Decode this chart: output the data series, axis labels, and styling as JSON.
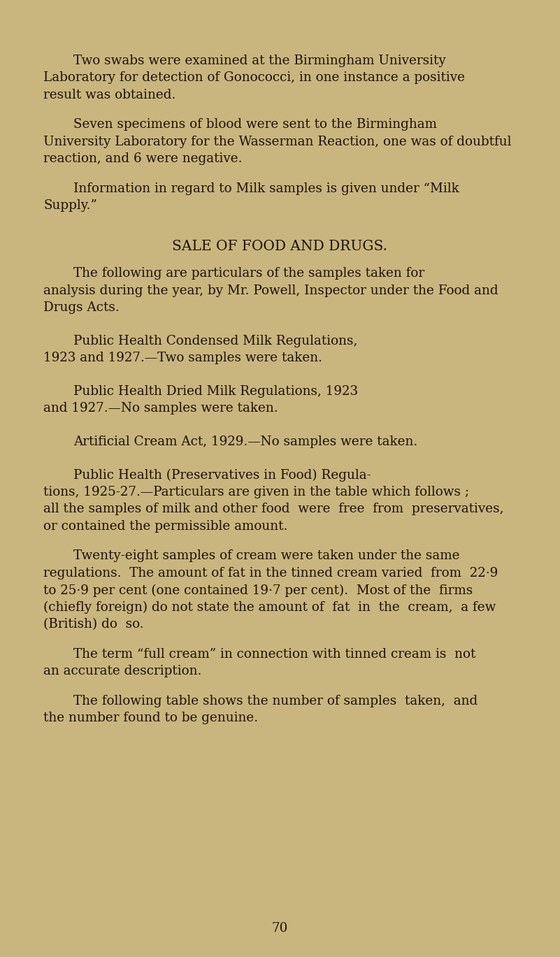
{
  "bg_color": "#c8b67e",
  "text_color": "#1c1008",
  "page_number": "70",
  "fig_width": 8.01,
  "fig_height": 13.69,
  "dpi": 100,
  "paragraphs": [
    {
      "type": "body",
      "first_line_indent": true,
      "lines": [
        "Two swabs were examined at the Birmingham University",
        "Laboratory for detection of Gonococci, in one instance a positive",
        "result was obtained."
      ]
    },
    {
      "type": "body",
      "first_line_indent": true,
      "lines": [
        "Seven specimens of blood were sent to the Birmingham",
        "University Laboratory for the Wasserman Reaction, one was of doubtful",
        "reaction, and 6 were negative."
      ]
    },
    {
      "type": "body",
      "first_line_indent": true,
      "lines": [
        "Information in regard to Milk samples is given under “Milk",
        "Supply.”"
      ]
    },
    {
      "type": "heading",
      "lines": [
        "SALE OF FOOD AND DRUGS."
      ]
    },
    {
      "type": "body",
      "first_line_indent": true,
      "lines": [
        "The following are particulars of the samples taken for",
        "analysis during the year, by Mr. Powell, Inspector under the Food and",
        "Drugs Acts."
      ]
    },
    {
      "type": "smallcaps",
      "first_line_indent": true,
      "lines": [
        "Public Health Condensed Milk Regulations,",
        "1923 and 1927.—Two samples were taken."
      ]
    },
    {
      "type": "smallcaps",
      "first_line_indent": true,
      "lines": [
        "Public Health Dried Milk Regulations, 1923",
        "and 1927.—No samples were taken."
      ]
    },
    {
      "type": "smallcaps",
      "first_line_indent": true,
      "lines": [
        "Artificial Cream Act, 1929.—No samples were taken."
      ]
    },
    {
      "type": "smallcaps",
      "first_line_indent": true,
      "lines": [
        "Public Health (Preservatives in Food) Regula-",
        "tions, 1925-27.—Particulars are given in the table which follows ;",
        "all the samples of milk and other food  were  free  from  preservatives,",
        "or contained the permissible amount."
      ]
    },
    {
      "type": "body",
      "first_line_indent": true,
      "lines": [
        "Twenty-eight samples of cream were taken under the same",
        "regulations.  The amount of fat in the tinned cream varied  from  22·9",
        "to 25·9 per cent (one contained 19·7 per cent).  Most of the  firms",
        "(chiefly foreign) do not state the amount of  fat  in  the  cream,  a few",
        "(British) do  so."
      ]
    },
    {
      "type": "body",
      "first_line_indent": true,
      "lines": [
        "The term “full cream” in connection with tinned cream is  not",
        "an accurate description."
      ]
    },
    {
      "type": "body",
      "first_line_indent": true,
      "lines": [
        "The following table shows the number of samples  taken,  and",
        "the number found to be genuine."
      ]
    }
  ]
}
